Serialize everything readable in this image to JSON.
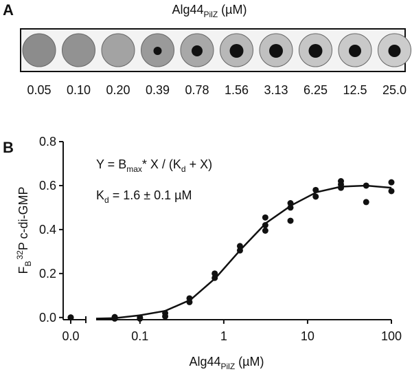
{
  "panel_labels": [
    "A",
    "B"
  ],
  "blot": {
    "title": [
      "Alg44",
      "PilZ",
      " (µM)"
    ],
    "labels": [
      "0.05",
      "0.10",
      "0.20",
      "0.39",
      "0.78",
      "1.56",
      "3.13",
      "6.25",
      "12.5",
      "25.0"
    ]
  },
  "chart_data": {
    "type": "scatter",
    "x_label": [
      "Alg44",
      "PilZ",
      " (µM)"
    ],
    "y_label": [
      "F",
      "B",
      "32",
      "P c-di-GMP"
    ],
    "annotations": [
      [
        "Y = B",
        "max",
        "* X / (K",
        "d",
        " + X)"
      ],
      [
        "K",
        "d",
        " = 1.6 ± 0.1 µM"
      ]
    ],
    "x_scale": "log",
    "xlim": [
      0.03,
      100
    ],
    "ylim": [
      -0.01,
      0.8
    ],
    "xticks": [
      {
        "value": 0,
        "label": "0.0"
      },
      0.1,
      1,
      10,
      100
    ],
    "yticks": [
      {
        "value": 0,
        "label": "0.0"
      },
      0.2,
      0.4,
      0.6,
      0.8
    ],
    "color": "#111111",
    "x": [
      0,
      0,
      0.05,
      0.05,
      0.05,
      0.1,
      0.1,
      0.2,
      0.2,
      0.39,
      0.39,
      0.78,
      0.78,
      1.56,
      1.56,
      3.13,
      3.13,
      3.13,
      6.25,
      6.25,
      6.25,
      12.5,
      12.5,
      25,
      25,
      25,
      50,
      50,
      100,
      100
    ],
    "values": [
      0,
      0,
      0,
      -0.005,
      0.002,
      -0.005,
      0,
      0.02,
      0.005,
      0.087,
      0.07,
      0.2,
      0.18,
      0.325,
      0.305,
      0.455,
      0.42,
      0.395,
      0.52,
      0.5,
      0.44,
      0.58,
      0.55,
      0.62,
      0.605,
      0.59,
      0.6,
      0.525,
      0.615,
      0.575
    ],
    "fit": {
      "x": [
        0.03,
        0.05,
        0.1,
        0.2,
        0.4,
        0.8,
        1.6,
        3.2,
        6.4,
        12.8,
        25,
        50,
        100
      ],
      "values": [
        -0.005,
        -0.003,
        0.01,
        0.03,
        0.08,
        0.18,
        0.31,
        0.43,
        0.51,
        0.57,
        0.595,
        0.6,
        0.59
      ]
    }
  }
}
